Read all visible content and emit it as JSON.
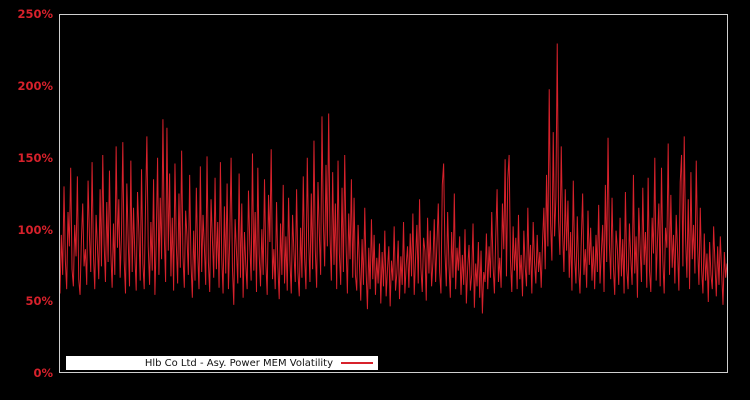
{
  "colors": {
    "line": "#d7212b",
    "tick_label": "#d7212b",
    "plot_border": "#cfcfcf",
    "background": "#000000",
    "legend_background": "#ffffff",
    "legend_text": "#111111"
  },
  "chart_data": {
    "type": "line",
    "title": "",
    "xlabel": "",
    "ylabel": "",
    "ylim": [
      0,
      250
    ],
    "grid": false,
    "legend_position": "bottom-left-inside",
    "x_tick_labels": [],
    "y_ticks": [
      {
        "label": "250%",
        "value": 250
      },
      {
        "label": "200%",
        "value": 200
      },
      {
        "label": "150%",
        "value": 150
      },
      {
        "label": "100%",
        "value": 100
      },
      {
        "label": "50%",
        "value": 50
      },
      {
        "label": "0%",
        "value": 0
      }
    ],
    "series": [
      {
        "name": "Hlb Co Ltd - Asy. Power MEM Volatility",
        "color": "#d7212b",
        "unit": "%",
        "values": [
          55,
          96,
          68,
          130,
          78,
          58,
          112,
          88,
          143,
          72,
          60,
          103,
          81,
          137,
          65,
          54,
          92,
          118,
          74,
          86,
          61,
          134,
          96,
          70,
          147,
          82,
          58,
          110,
          88,
          65,
          128,
          74,
          152,
          90,
          63,
          119,
          77,
          141,
          84,
          59,
          104,
          68,
          158,
          87,
          121,
          66,
          96,
          161,
          78,
          55,
          132,
          93,
          60,
          148,
          70,
          115,
          82,
          57,
          126,
          98,
          64,
          142,
          76,
          58,
          117,
          165,
          88,
          61,
          105,
          71,
          135,
          54,
          92,
          150,
          68,
          122,
          79,
          177,
          96,
          63,
          171,
          85,
          139,
          67,
          108,
          57,
          146,
          90,
          62,
          125,
          73,
          155,
          81,
          59,
          113,
          95,
          68,
          138,
          76,
          52,
          99,
          64,
          129,
          83,
          58,
          144,
          70,
          110,
          88,
          61,
          151,
          77,
          56,
          121,
          93,
          66,
          136,
          72,
          105,
          59,
          147,
          80,
          55,
          116,
          69,
          132,
          58,
          94,
          150,
          73,
          47,
          107,
          85,
          62,
          139,
          66,
          118,
          52,
          98,
          75,
          58,
          127,
          89,
          64,
          153,
          71,
          112,
          56,
          143,
          82,
          60,
          100,
          68,
          135,
          77,
          54,
          124,
          91,
          156,
          65,
          86,
          58,
          119,
          74,
          51,
          104,
          68,
          131,
          62,
          95,
          57,
          122,
          78,
          55,
          110,
          84,
          63,
          128,
          70,
          53,
          101,
          66,
          137,
          80,
          58,
          150,
          92,
          63,
          125,
          72,
          162,
          85,
          59,
          133,
          97,
          68,
          179,
          105,
          74,
          145,
          88,
          181,
          96,
          64,
          140,
          75,
          118,
          58,
          148,
          83,
          61,
          129,
          70,
          152,
          90,
          55,
          111,
          79,
          135,
          66,
          122,
          68,
          57,
          103,
          76,
          50,
          93,
          61,
          115,
          71,
          44,
          87,
          58,
          107,
          65,
          96,
          54,
          80,
          62,
          90,
          48,
          84,
          60,
          99,
          53,
          72,
          88,
          46,
          78,
          64,
          102,
          57,
          69,
          92,
          51,
          81,
          61,
          105,
          55,
          75,
          88,
          59,
          97,
          67,
          111,
          54,
          79,
          103,
          62,
          121,
          73,
          56,
          94,
          85,
          50,
          108,
          69,
          99,
          60,
          77,
          107,
          63,
          90,
          118,
          70,
          55,
          131,
          146,
          84,
          60,
          112,
          75,
          52,
          98,
          66,
          125,
          58,
          87,
          71,
          95,
          54,
          82,
          61,
          100,
          48,
          73,
          89,
          57,
          68,
          104,
          45,
          76,
          60,
          91,
          52,
          85,
          41,
          70,
          63,
          97,
          58,
          88,
          66,
          112,
          74,
          55,
          95,
          128,
          63,
          80,
          59,
          118,
          86,
          149,
          67,
          135,
          152,
          78,
          56,
          102,
          71,
          94,
          58,
          110,
          65,
          82,
          53,
          99,
          74,
          60,
          115,
          68,
          89,
          55,
          105,
          77,
          62,
          96,
          70,
          84,
          59,
          91,
          115,
          72,
          138,
          88,
          198,
          104,
          78,
          168,
          95,
          122,
          230,
          106,
          82,
          158,
          97,
          70,
          128,
          85,
          120,
          66,
          98,
          57,
          134,
          81,
          62,
          109,
          73,
          55,
          92,
          125,
          68,
          86,
          59,
          113,
          75,
          101,
          64,
          88,
          58,
          96,
          70,
          117,
          62,
          84,
          103,
          56,
          131,
          77,
          164,
          90,
          65,
          122,
          74,
          54,
          99,
          86,
          61,
          108,
          67,
          93,
          55,
          126,
          72,
          58,
          104,
          80,
          61,
          138,
          69,
          95,
          52,
          115,
          87,
          63,
          129,
          75,
          98,
          59,
          136,
          71,
          56,
          108,
          83,
          150,
          64,
          92,
          118,
          60,
          143,
          78,
          55,
          101,
          87,
          160,
          68,
          124,
          73,
          96,
          62,
          110,
          85,
          57,
          133,
          152,
          74,
          165,
          94,
          66,
          121,
          58,
          140,
          79,
          103,
          69,
          148,
          88,
          61,
          115,
          72,
          55,
          97,
          64,
          83,
          49,
          91,
          68,
          58,
          102,
          76,
          53,
          88,
          61,
          95,
          70,
          47,
          84,
          66,
          76
        ]
      }
    ]
  },
  "legend": {
    "label": "Hlb Co Ltd - Asy. Power MEM Volatility"
  }
}
